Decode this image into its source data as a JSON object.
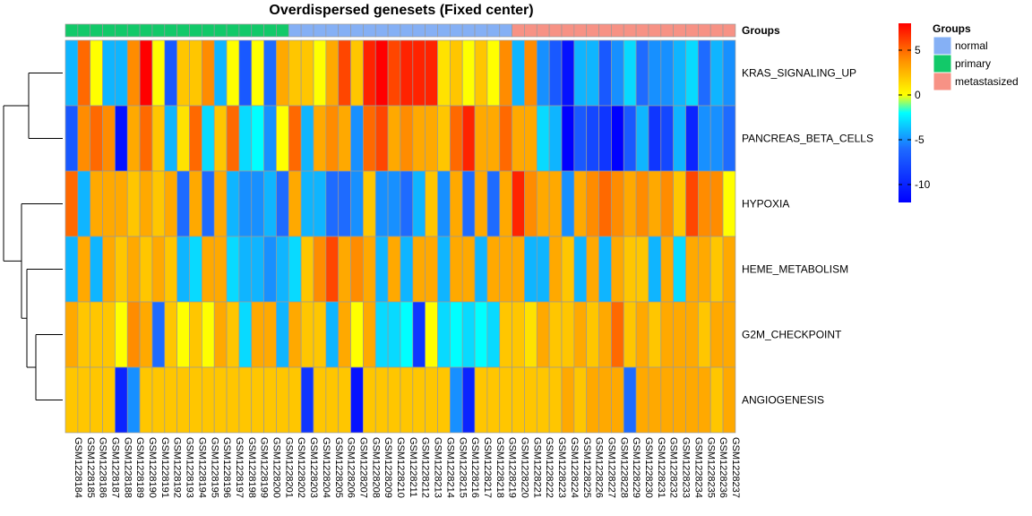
{
  "chart_data": {
    "type": "heatmap",
    "title": "Overdispersed genesets (Fixed center)",
    "annotation_track_label": "Groups",
    "rows": [
      "KRAS_SIGNALING_UP",
      "PANCREAS_BETA_CELLS",
      "HYPOXIA",
      "HEME_METABOLISM",
      "G2M_CHECKPOINT",
      "ANGIOGENESIS"
    ],
    "columns": [
      "GSM1228184",
      "GSM1228185",
      "GSM1228186",
      "GSM1228187",
      "GSM1228188",
      "GSM1228189",
      "GSM1228190",
      "GSM1228191",
      "GSM1228192",
      "GSM1228193",
      "GSM1228194",
      "GSM1228195",
      "GSM1228196",
      "GSM1228197",
      "GSM1228198",
      "GSM1228199",
      "GSM1228200",
      "GSM1228201",
      "GSM1228202",
      "GSM1228203",
      "GSM1228204",
      "GSM1228205",
      "GSM1228206",
      "GSM1228207",
      "GSM1228208",
      "GSM1228209",
      "GSM1228210",
      "GSM1228211",
      "GSM1228212",
      "GSM1228213",
      "GSM1228214",
      "GSM1228215",
      "GSM1228216",
      "GSM1228217",
      "GSM1228218",
      "GSM1228219",
      "GSM1228220",
      "GSM1228221",
      "GSM1228222",
      "GSM1228223",
      "GSM1228224",
      "GSM1228225",
      "GSM1228226",
      "GSM1228227",
      "GSM1228228",
      "GSM1228229",
      "GSM1228230",
      "GSM1228231",
      "GSM1228232",
      "GSM1228233",
      "GSM1228234",
      "GSM1228235",
      "GSM1228236",
      "GSM1228237"
    ],
    "column_groups": [
      "primary",
      "primary",
      "primary",
      "primary",
      "primary",
      "primary",
      "primary",
      "primary",
      "primary",
      "primary",
      "primary",
      "primary",
      "primary",
      "primary",
      "primary",
      "primary",
      "primary",
      "primary",
      "normal",
      "normal",
      "normal",
      "normal",
      "normal",
      "normal",
      "normal",
      "normal",
      "normal",
      "normal",
      "normal",
      "normal",
      "normal",
      "normal",
      "normal",
      "normal",
      "normal",
      "normal",
      "metastasized",
      "metastasized",
      "metastasized",
      "metastasized",
      "metastasized",
      "metastasized",
      "metastasized",
      "metastasized",
      "metastasized",
      "metastasized",
      "metastasized",
      "metastasized",
      "metastasized",
      "metastasized",
      "metastasized",
      "metastasized",
      "metastasized",
      "metastasized"
    ],
    "values": [
      [
        -4,
        5,
        0,
        -4,
        -4,
        4,
        8,
        0,
        -7,
        2,
        2,
        4,
        -4,
        0,
        -7,
        0,
        -6,
        3,
        2,
        2,
        0,
        3,
        6,
        2,
        7,
        8,
        6,
        7,
        7,
        7,
        1,
        2,
        0,
        2,
        0,
        4,
        -4,
        4,
        -5,
        -7,
        -11,
        -4,
        -4,
        -7,
        -5,
        -3,
        -6,
        -5,
        -5,
        -4,
        -3,
        -6,
        -4,
        -5
      ],
      [
        -7,
        4,
        5,
        4,
        -11,
        3,
        5,
        2,
        -4,
        1,
        5,
        -3,
        2,
        5,
        -3,
        -2,
        -5,
        0,
        5,
        -4,
        3,
        4,
        3,
        -5,
        5,
        6,
        3,
        4,
        3,
        3,
        2,
        5,
        7,
        3,
        3,
        5,
        3,
        3,
        -3,
        -4,
        -12,
        -7,
        -8,
        -9,
        -12,
        -7,
        -4,
        -9,
        -8,
        -4,
        -10,
        -5,
        -5,
        -6
      ],
      [
        5,
        -4,
        3,
        3,
        3,
        2,
        3,
        2,
        3,
        -6,
        3,
        -6,
        3,
        -4,
        -5,
        -5,
        -4,
        -6,
        3,
        -4,
        -4,
        -6,
        -6,
        -5,
        2,
        -5,
        -5,
        -6,
        -4,
        2,
        -5,
        3,
        -6,
        3,
        -6,
        3,
        7,
        4,
        3,
        3,
        -5,
        3,
        4,
        5,
        4,
        3,
        4,
        3,
        4,
        2,
        6,
        4,
        4,
        0
      ],
      [
        -4,
        3,
        -4,
        3,
        2,
        3,
        2,
        3,
        2,
        -4,
        -3,
        3,
        3,
        -3,
        -4,
        -4,
        -5,
        -4,
        -3,
        2,
        4,
        6,
        3,
        4,
        3,
        -4,
        3,
        -4,
        3,
        3,
        -4,
        3,
        3,
        -4,
        3,
        3,
        3,
        -4,
        -4,
        3,
        2,
        -4,
        3,
        -4,
        3,
        2,
        2,
        -4,
        3,
        -3,
        3,
        3,
        2,
        3
      ],
      [
        3,
        2,
        2,
        2,
        0,
        4,
        3,
        -6,
        2,
        0,
        2,
        0,
        3,
        2,
        -3,
        3,
        3,
        -4,
        3,
        2,
        2,
        -4,
        3,
        0,
        3,
        -3,
        -3,
        -2,
        -9,
        0,
        -3,
        -2,
        -3,
        -2,
        -3,
        2,
        2,
        1,
        3,
        2,
        2,
        3,
        2,
        3,
        5,
        2,
        3,
        2,
        3,
        3,
        3,
        2,
        3,
        3
      ],
      [
        2,
        2,
        2,
        2,
        -10,
        -5,
        2,
        2,
        2,
        2,
        2,
        2,
        2,
        2,
        2,
        2,
        2,
        2,
        2,
        -9,
        2,
        2,
        2,
        -11,
        2,
        2,
        2,
        2,
        2,
        2,
        2,
        -5,
        -10,
        2,
        2,
        2,
        2,
        2,
        2,
        2,
        3,
        2,
        3,
        3,
        3,
        -6,
        3,
        3,
        3,
        3,
        3,
        3,
        2,
        3
      ]
    ],
    "colorbar": {
      "ticks": [
        5,
        0,
        -5,
        -10
      ],
      "range": [
        -12,
        8
      ]
    },
    "legend": {
      "title": "Groups",
      "items": [
        {
          "label": "normal",
          "color": "#85B0F5"
        },
        {
          "label": "primary",
          "color": "#12C969"
        },
        {
          "label": "metastasized",
          "color": "#F79285"
        }
      ]
    }
  }
}
